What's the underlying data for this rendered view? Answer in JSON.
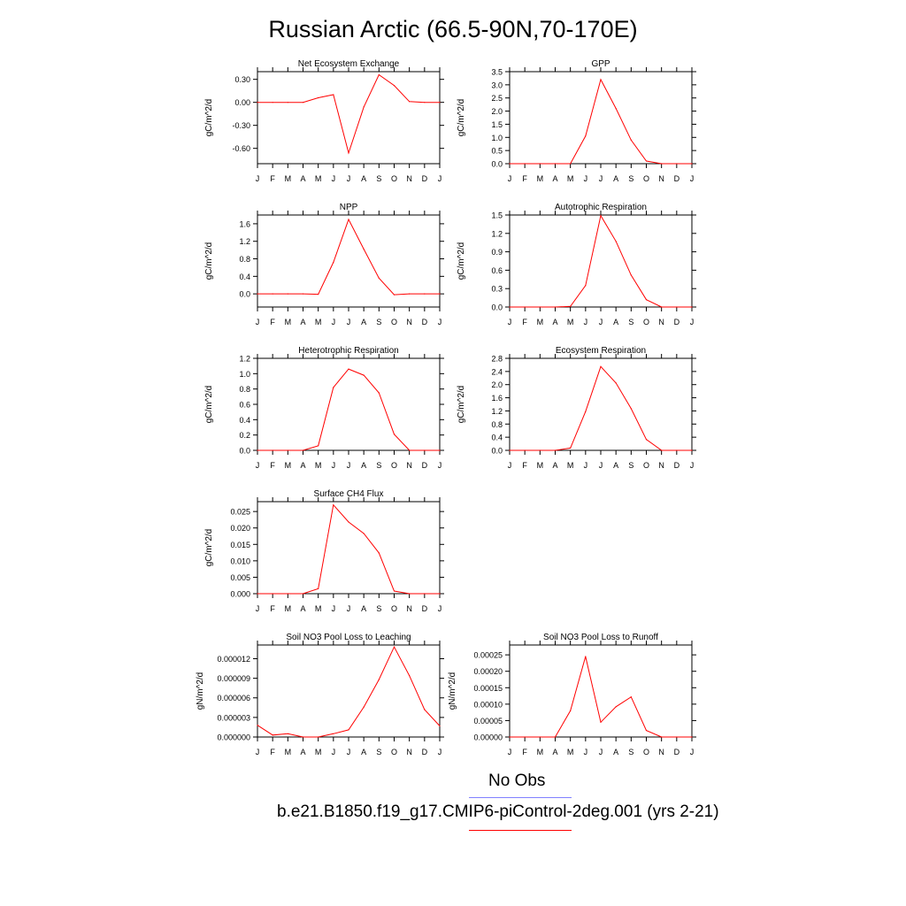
{
  "title": "Russian Arctic (66.5-90N,70-170E)",
  "months": [
    "J",
    "F",
    "M",
    "A",
    "M",
    "J",
    "J",
    "A",
    "S",
    "O",
    "N",
    "D",
    "J"
  ],
  "colors": {
    "model": "#ff0000",
    "obs": "#8080ff",
    "axis": "#000000"
  },
  "legend": {
    "obs_label": "No Obs",
    "model_label": "b.e21.B1850.f19_g17.CMIP6-piControl-2deg.001 (yrs 2-21)"
  },
  "chart_data": [
    {
      "type": "line",
      "title": "Net Ecosystem Exchange",
      "ylabel": "gC/m^2/d",
      "ylim": [
        -0.8,
        0.4
      ],
      "yticks": [
        -0.6,
        -0.3,
        0.0,
        0.3
      ],
      "ytick_labels": [
        "-0.60",
        "-0.30",
        "0.00",
        "0.30"
      ],
      "values": [
        0.0,
        0.0,
        0.0,
        0.0,
        0.06,
        0.1,
        -0.66,
        -0.06,
        0.36,
        0.22,
        0.01,
        0.0,
        0.0
      ]
    },
    {
      "type": "line",
      "title": "GPP",
      "ylabel": "gC/m^2/d",
      "ylim": [
        0,
        3.5
      ],
      "yticks": [
        0.0,
        0.5,
        1.0,
        1.5,
        2.0,
        2.5,
        3.0,
        3.5
      ],
      "ytick_labels": [
        "0.0",
        "0.5",
        "1.0",
        "1.5",
        "2.0",
        "2.5",
        "3.0",
        "3.5"
      ],
      "values": [
        0.0,
        0.0,
        0.0,
        0.0,
        0.0,
        1.05,
        3.2,
        2.1,
        0.9,
        0.1,
        0.0,
        0.0,
        0.0
      ]
    },
    {
      "type": "line",
      "title": "NPP",
      "ylabel": "gC/m^2/d",
      "ylim": [
        -0.3,
        1.8
      ],
      "yticks": [
        0.0,
        0.4,
        0.8,
        1.2,
        1.6
      ],
      "ytick_labels": [
        "0.0",
        "0.4",
        "0.8",
        "1.2",
        "1.6"
      ],
      "values": [
        0.0,
        0.0,
        0.0,
        0.0,
        -0.01,
        0.72,
        1.7,
        1.02,
        0.36,
        -0.02,
        0.0,
        0.0,
        0.0
      ]
    },
    {
      "type": "line",
      "title": "Autotrophic Respiration",
      "ylabel": "gC/m^2/d",
      "ylim": [
        0,
        1.5
      ],
      "yticks": [
        0.0,
        0.3,
        0.6,
        0.9,
        1.2,
        1.5
      ],
      "ytick_labels": [
        "0.0",
        "0.3",
        "0.6",
        "0.9",
        "1.2",
        "1.5"
      ],
      "values": [
        0.0,
        0.0,
        0.0,
        0.0,
        0.01,
        0.35,
        1.49,
        1.07,
        0.52,
        0.12,
        0.0,
        0.0,
        0.0
      ]
    },
    {
      "type": "line",
      "title": "Heterotrophic Respiration",
      "ylabel": "gC/m^2/d",
      "ylim": [
        0,
        1.2
      ],
      "yticks": [
        0.0,
        0.2,
        0.4,
        0.6,
        0.8,
        1.0,
        1.2
      ],
      "ytick_labels": [
        "0.0",
        "0.2",
        "0.4",
        "0.6",
        "0.8",
        "1.0",
        "1.2"
      ],
      "values": [
        0.0,
        0.0,
        0.0,
        0.0,
        0.06,
        0.82,
        1.06,
        0.98,
        0.75,
        0.21,
        0.0,
        0.0,
        0.0
      ]
    },
    {
      "type": "line",
      "title": "Ecosystem Respiration",
      "ylabel": "gC/m^2/d",
      "ylim": [
        0,
        2.8
      ],
      "yticks": [
        0.0,
        0.4,
        0.8,
        1.2,
        1.6,
        2.0,
        2.4,
        2.8
      ],
      "ytick_labels": [
        "0.0",
        "0.4",
        "0.8",
        "1.2",
        "1.6",
        "2.0",
        "2.4",
        "2.8"
      ],
      "values": [
        0.0,
        0.0,
        0.0,
        0.0,
        0.07,
        1.18,
        2.55,
        2.05,
        1.27,
        0.33,
        0.0,
        0.0,
        0.0
      ]
    },
    {
      "type": "line",
      "title": "Surface CH4 Flux",
      "ylabel": "gC/m^2/d",
      "ylim": [
        0,
        0.028
      ],
      "yticks": [
        0.0,
        0.005,
        0.01,
        0.015,
        0.02,
        0.025
      ],
      "ytick_labels": [
        "0.000",
        "0.005",
        "0.010",
        "0.015",
        "0.020",
        "0.025"
      ],
      "values": [
        0.0,
        0.0,
        0.0,
        0.0,
        0.0015,
        0.027,
        0.0218,
        0.0183,
        0.0124,
        0.0008,
        0.0,
        0.0,
        0.0
      ]
    },
    {
      "type": "line",
      "title": "Soil NO3 Pool Loss to Leaching",
      "ylabel": "gN/m^2/d",
      "ylim": [
        0,
        1.41e-05
      ],
      "yticks": [
        0.0,
        3e-06,
        6e-06,
        9e-06,
        1.2e-05
      ],
      "ytick_labels": [
        "0.000000",
        "0.000003",
        "0.000006",
        "0.000009",
        "0.000012"
      ],
      "values": [
        1.8e-06,
        3e-07,
        5e-07,
        0.0,
        0.0,
        5e-07,
        1.1e-06,
        4.6e-06,
        8.8e-06,
        1.38e-05,
        9.4e-06,
        4.2e-06,
        1.7e-06
      ]
    },
    {
      "type": "line",
      "title": "Soil NO3 Pool Loss to Runoff",
      "ylabel": "gN/m^2/d",
      "ylim": [
        0,
        0.00028
      ],
      "yticks": [
        0.0,
        5e-05,
        0.0001,
        0.00015,
        0.0002,
        0.00025
      ],
      "ytick_labels": [
        "0.00000",
        "0.00005",
        "0.00010",
        "0.00015",
        "0.00020",
        "0.00025"
      ],
      "values": [
        0.0,
        0.0,
        0.0,
        0.0,
        8e-05,
        0.000245,
        4.5e-05,
        9.2e-05,
        0.000122,
        2e-05,
        0.0,
        0.0,
        0.0
      ]
    }
  ]
}
